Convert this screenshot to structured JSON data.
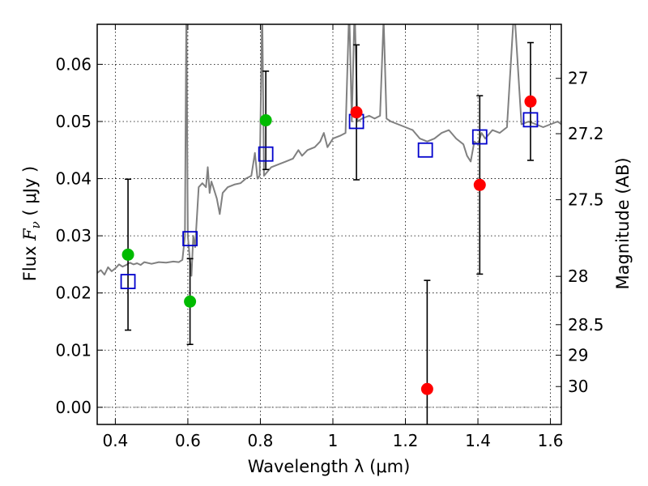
{
  "chart_data": {
    "type": "scatter",
    "xlabel": "Wavelength  λ (μm)",
    "ylabel_prefix": "Flux  ",
    "ylabel_symbol": "F",
    "ylabel_subscript": "ν",
    "ylabel_suffix": "  ( μJy )",
    "ylabel2": "Magnitude (AB)",
    "xlim": [
      0.35,
      1.63
    ],
    "ylim": [
      -0.003,
      0.067
    ],
    "grid": true,
    "xticks": [
      0.4,
      0.6,
      0.8,
      1.0,
      1.2,
      1.4,
      1.6
    ],
    "xtick_labels": [
      "0.4",
      "0.6",
      "0.8",
      "1",
      "1.2",
      "1.4",
      "1.6"
    ],
    "yticks": [
      0.0,
      0.01,
      0.02,
      0.03,
      0.04,
      0.05,
      0.06
    ],
    "ytick_labels": [
      "0.00",
      "0.01",
      "0.02",
      "0.03",
      "0.04",
      "0.05",
      "0.06"
    ],
    "right_ticks": [
      {
        "label": "27",
        "mag": 27.0
      },
      {
        "label": "27.2",
        "mag": 27.2
      },
      {
        "label": "27.5",
        "mag": 27.5
      },
      {
        "label": "28",
        "mag": 28.0
      },
      {
        "label": "28.5",
        "mag": 28.5
      },
      {
        "label": "29",
        "mag": 29.0
      },
      {
        "label": "30",
        "mag": 30.0
      }
    ],
    "zero_line": {
      "y": 0.0,
      "color": "#888888"
    },
    "spectrum": {
      "color": "#808080",
      "points": [
        [
          0.35,
          0.0235
        ],
        [
          0.36,
          0.024
        ],
        [
          0.37,
          0.0232
        ],
        [
          0.38,
          0.0245
        ],
        [
          0.39,
          0.0238
        ],
        [
          0.4,
          0.0243
        ],
        [
          0.41,
          0.025
        ],
        [
          0.42,
          0.0246
        ],
        [
          0.43,
          0.0249
        ],
        [
          0.44,
          0.0253
        ],
        [
          0.45,
          0.025
        ],
        [
          0.46,
          0.0252
        ],
        [
          0.47,
          0.0249
        ],
        [
          0.48,
          0.0254
        ],
        [
          0.5,
          0.0251
        ],
        [
          0.52,
          0.0254
        ],
        [
          0.54,
          0.0253
        ],
        [
          0.56,
          0.0255
        ],
        [
          0.575,
          0.0254
        ],
        [
          0.585,
          0.0258
        ],
        [
          0.592,
          0.03
        ],
        [
          0.596,
          0.07
        ],
        [
          0.6,
          0.03
        ],
        [
          0.605,
          0.0262
        ],
        [
          0.61,
          0.023
        ],
        [
          0.615,
          0.03
        ],
        [
          0.62,
          0.028
        ],
        [
          0.63,
          0.0385
        ],
        [
          0.64,
          0.0392
        ],
        [
          0.65,
          0.0385
        ],
        [
          0.655,
          0.042
        ],
        [
          0.66,
          0.0375
        ],
        [
          0.665,
          0.0395
        ],
        [
          0.67,
          0.0385
        ],
        [
          0.68,
          0.0365
        ],
        [
          0.688,
          0.0338
        ],
        [
          0.696,
          0.0375
        ],
        [
          0.71,
          0.0385
        ],
        [
          0.73,
          0.039
        ],
        [
          0.745,
          0.0392
        ],
        [
          0.76,
          0.04
        ],
        [
          0.775,
          0.0405
        ],
        [
          0.785,
          0.0445
        ],
        [
          0.792,
          0.04
        ],
        [
          0.798,
          0.0405
        ],
        [
          0.805,
          0.07
        ],
        [
          0.81,
          0.0405
        ],
        [
          0.83,
          0.042
        ],
        [
          0.85,
          0.0425
        ],
        [
          0.87,
          0.043
        ],
        [
          0.89,
          0.0435
        ],
        [
          0.905,
          0.045
        ],
        [
          0.915,
          0.044
        ],
        [
          0.93,
          0.045
        ],
        [
          0.95,
          0.0455
        ],
        [
          0.965,
          0.0465
        ],
        [
          0.975,
          0.048
        ],
        [
          0.985,
          0.0455
        ],
        [
          1.0,
          0.047
        ],
        [
          1.02,
          0.0475
        ],
        [
          1.035,
          0.048
        ],
        [
          1.045,
          0.07
        ],
        [
          1.052,
          0.05
        ],
        [
          1.06,
          0.07
        ],
        [
          1.068,
          0.05
        ],
        [
          1.08,
          0.0505
        ],
        [
          1.1,
          0.051
        ],
        [
          1.115,
          0.0505
        ],
        [
          1.13,
          0.051
        ],
        [
          1.14,
          0.068
        ],
        [
          1.148,
          0.0505
        ],
        [
          1.16,
          0.05
        ],
        [
          1.18,
          0.0495
        ],
        [
          1.2,
          0.049
        ],
        [
          1.22,
          0.0485
        ],
        [
          1.24,
          0.047
        ],
        [
          1.26,
          0.0465
        ],
        [
          1.28,
          0.047
        ],
        [
          1.3,
          0.048
        ],
        [
          1.32,
          0.0485
        ],
        [
          1.34,
          0.047
        ],
        [
          1.36,
          0.046
        ],
        [
          1.37,
          0.044
        ],
        [
          1.38,
          0.043
        ],
        [
          1.39,
          0.0465
        ],
        [
          1.4,
          0.046
        ],
        [
          1.41,
          0.048
        ],
        [
          1.42,
          0.047
        ],
        [
          1.44,
          0.0485
        ],
        [
          1.46,
          0.048
        ],
        [
          1.48,
          0.049
        ],
        [
          1.5,
          0.07
        ],
        [
          1.52,
          0.0495
        ],
        [
          1.54,
          0.05
        ],
        [
          1.56,
          0.0495
        ],
        [
          1.58,
          0.049
        ],
        [
          1.6,
          0.0495
        ],
        [
          1.62,
          0.05
        ],
        [
          1.63,
          0.0495
        ]
      ]
    },
    "model_points": {
      "color": "#0000cc",
      "marker": "open-square",
      "points": [
        {
          "x": 0.435,
          "y": 0.022
        },
        {
          "x": 0.606,
          "y": 0.0295
        },
        {
          "x": 0.815,
          "y": 0.0443
        },
        {
          "x": 1.065,
          "y": 0.05
        },
        {
          "x": 1.255,
          "y": 0.045
        },
        {
          "x": 1.405,
          "y": 0.0473
        },
        {
          "x": 1.545,
          "y": 0.0503
        }
      ]
    },
    "observed": [
      {
        "x": 0.435,
        "y": 0.0267,
        "yerr": 0.0132,
        "color": "#00bb00"
      },
      {
        "x": 0.606,
        "y": 0.0185,
        "yerr": 0.0075,
        "color": "#00bb00"
      },
      {
        "x": 0.815,
        "y": 0.0502,
        "yerr": 0.0086,
        "color": "#00bb00"
      },
      {
        "x": 1.065,
        "y": 0.0516,
        "yerr": 0.0118,
        "color": "#ff0000"
      },
      {
        "x": 1.26,
        "y": 0.0032,
        "yerr": 0.019,
        "color": "#ff0000"
      },
      {
        "x": 1.405,
        "y": 0.0389,
        "yerr": 0.0156,
        "color": "#ff0000"
      },
      {
        "x": 1.545,
        "y": 0.0535,
        "yerr": 0.0103,
        "color": "#ff0000"
      }
    ]
  }
}
